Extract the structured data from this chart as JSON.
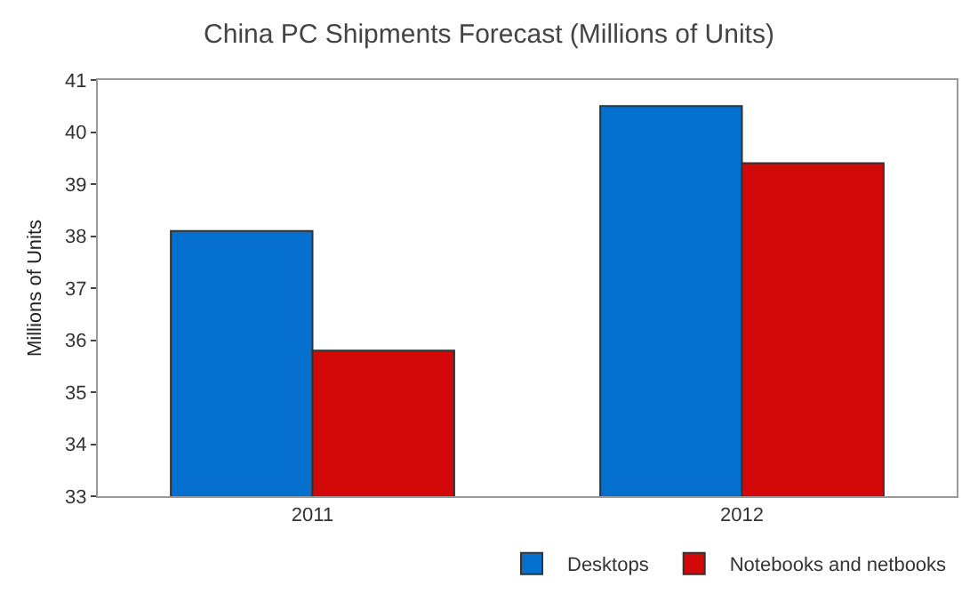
{
  "chart_data": {
    "type": "bar",
    "title": "China PC Shipments Forecast (Millions of Units)",
    "ylabel": "Millions of Units",
    "categories": [
      "2011",
      "2012"
    ],
    "series": [
      {
        "name": "Desktops",
        "color": "#0570cd",
        "values": [
          38.1,
          40.5
        ]
      },
      {
        "name": "Notebooks and netbooks",
        "color": "#d30808",
        "values": [
          35.8,
          39.4
        ]
      }
    ],
    "ylim": [
      33,
      41
    ],
    "yticks": [
      33,
      34,
      35,
      36,
      37,
      38,
      39,
      40,
      41
    ],
    "grid": false,
    "legend": "bottom"
  }
}
